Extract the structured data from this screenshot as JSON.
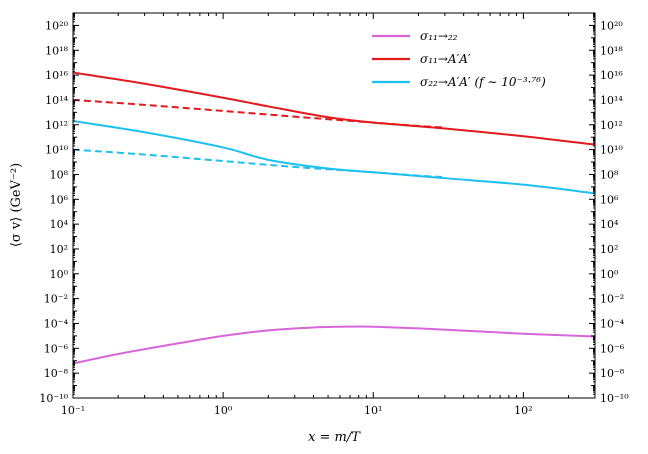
{
  "chart_data": {
    "type": "line",
    "xlabel": "x = m/T",
    "ylabel": "⟨σ v⟩  (GeV⁻²)",
    "xscale": "log",
    "yscale": "log",
    "xlim": [
      0.1,
      300
    ],
    "ylim": [
      1e-10,
      1e+21
    ],
    "x_ticks": [
      {
        "value": 0.1,
        "label": "10⁻¹"
      },
      {
        "value": 1,
        "label": "10⁰"
      },
      {
        "value": 10,
        "label": "10¹"
      },
      {
        "value": 100,
        "label": "10²"
      }
    ],
    "y_ticks": [
      {
        "value": 1e-10,
        "label": "10⁻¹⁰"
      },
      {
        "value": 1e-08,
        "label": "10⁻⁸"
      },
      {
        "value": 1e-06,
        "label": "10⁻⁶"
      },
      {
        "value": 0.0001,
        "label": "10⁻⁴"
      },
      {
        "value": 0.01,
        "label": "10⁻²"
      },
      {
        "value": 1,
        "label": "10⁰"
      },
      {
        "value": 100.0,
        "label": "10²"
      },
      {
        "value": 10000.0,
        "label": "10⁴"
      },
      {
        "value": 1000000.0,
        "label": "10⁶"
      },
      {
        "value": 100000000.0,
        "label": "10⁸"
      },
      {
        "value": 10000000000.0,
        "label": "10¹⁰"
      },
      {
        "value": 1000000000000.0,
        "label": "10¹²"
      },
      {
        "value": 100000000000000.0,
        "label": "10¹⁴"
      },
      {
        "value": 1e+16,
        "label": "10¹⁶"
      },
      {
        "value": 1e+18,
        "label": "10¹⁸"
      },
      {
        "value": 1e+20,
        "label": "10²⁰"
      }
    ],
    "mirror_y_labels": true,
    "grid": false,
    "legend_position": "top-right",
    "legend": [
      {
        "label": "σ₁₁→₂₂",
        "color": "#d966d9"
      },
      {
        "label": "σ₁₁→A′A′",
        "color": "#e31a1c"
      },
      {
        "label": "σ₂₂→A′A′  (f ∼ 10⁻³·⁷⁶)",
        "color": "#1ec0ef"
      }
    ],
    "series": [
      {
        "color": "#d966d9",
        "style": "solid",
        "x": [
          0.1,
          0.2,
          0.5,
          1,
          2,
          4,
          7,
          10,
          20,
          50,
          100,
          300
        ],
        "y": [
          6e-08,
          3.5e-07,
          2.5e-06,
          1e-05,
          2.8e-05,
          4.8e-05,
          5.6e-05,
          5.5e-05,
          4e-05,
          2.3e-05,
          1.5e-05,
          9e-06
        ]
      },
      {
        "color": "#e31a1c",
        "style": "solid",
        "x": [
          0.1,
          0.3,
          1,
          2,
          5,
          10,
          30,
          100,
          300
        ],
        "y": [
          1.6e+16,
          2000000000000000.0,
          150000000000000.0,
          30000000000000.0,
          4000000000000.0,
          1500000000000.0,
          500000000000.0,
          120000000000.0,
          25000000000.0
        ]
      },
      {
        "color": "#e31a1c",
        "style": "dashed",
        "x": [
          0.1,
          0.3,
          1,
          3,
          10,
          20,
          30
        ],
        "y": [
          100000000000000.0,
          40000000000000.0,
          13000000000000.0,
          4500000000000.0,
          1500000000000.0,
          800000000000.0,
          600000000000.0
        ]
      },
      {
        "color": "#1ec0ef",
        "style": "solid",
        "x": [
          0.1,
          0.3,
          1,
          2,
          5,
          10,
          30,
          100,
          300
        ],
        "y": [
          2000000000000.0,
          250000000000.0,
          15000000000.0,
          1500000000.0,
          300000000.0,
          150000000.0,
          50000000.0,
          15000000.0,
          3000000.0
        ]
      },
      {
        "color": "#1ec0ef",
        "style": "dashed",
        "x": [
          0.1,
          0.3,
          1,
          3,
          10,
          20,
          30
        ],
        "y": [
          10000000000.0,
          4000000000.0,
          1200000000.0,
          400000000.0,
          150000000.0,
          80000000.0,
          60000000.0
        ]
      }
    ]
  }
}
